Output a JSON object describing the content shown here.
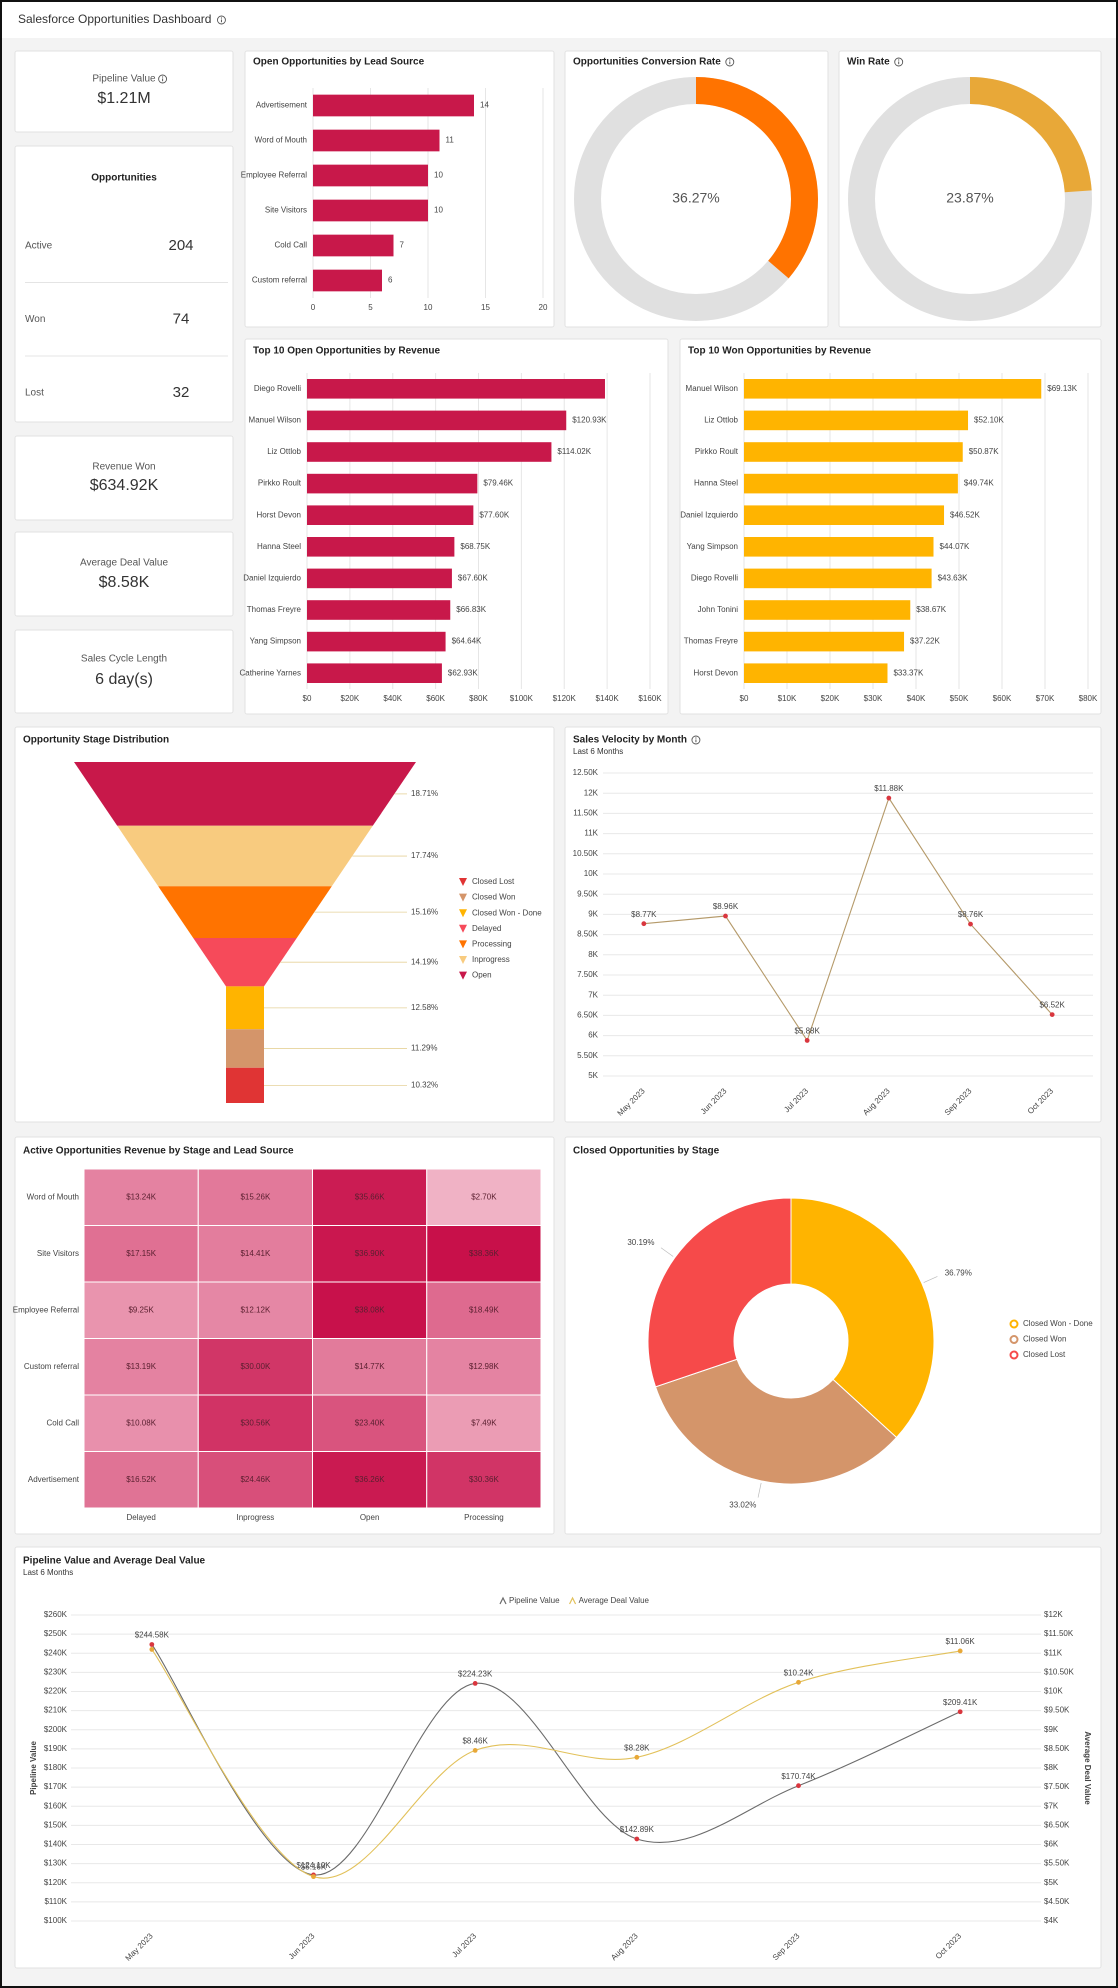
{
  "header": {
    "title": "Salesforce Opportunities Dashboard"
  },
  "kpis": {
    "pipeline": {
      "label": "Pipeline Value",
      "value": "$1.21M"
    },
    "opportunities": {
      "title": "Opportunities",
      "rows": [
        {
          "label": "Active",
          "value": 204
        },
        {
          "label": "Won",
          "value": 74
        },
        {
          "label": "Lost",
          "value": 32
        }
      ]
    },
    "revenue_won": {
      "label": "Revenue Won",
      "value": "$634.92K"
    },
    "avg_deal": {
      "label": "Average Deal Value",
      "value": "$8.58K"
    },
    "cycle": {
      "label": "Sales Cycle Length",
      "value": "6 day(s)"
    }
  },
  "chart_data": [
    {
      "type": "hbar",
      "title": "Open Opportunities by Lead Source",
      "categories": [
        "Advertisement",
        "Word of Mouth",
        "Employee Referral",
        "Site Visitors",
        "Cold Call",
        "Custom referral"
      ],
      "values": [
        14,
        11,
        10,
        10,
        7,
        6
      ],
      "color": "#c8184a",
      "xlim": [
        0,
        20
      ],
      "xticks": [
        0,
        5,
        10,
        15,
        20
      ],
      "grid": true
    },
    {
      "type": "gauge",
      "title": "Opportunities Conversion Rate",
      "values": [
        36.27
      ],
      "value_labels": [
        "36.27%"
      ],
      "color": "#ff7300",
      "track_color": "#e0e0e0"
    },
    {
      "type": "gauge",
      "title": "Win Rate",
      "values": [
        23.87
      ],
      "value_labels": [
        "23.87%"
      ],
      "color": "#e8a838",
      "track_color": "#e0e0e0"
    },
    {
      "type": "hbar",
      "title": "Top 10 Open Opportunities by Revenue",
      "categories": [
        "Diego Rovelli",
        "Manuel Wilson",
        "Liz Ottlob",
        "Pirkko Roult",
        "Horst Devon",
        "Hanna Steel",
        "Daniel Izquierdo",
        "Thomas Freyre",
        "Yang Simpson",
        "Catherine Yarnes"
      ],
      "values": [
        139000,
        120930,
        114020,
        79460,
        77600,
        68750,
        67600,
        66830,
        64640,
        62930
      ],
      "value_labels": [
        null,
        "$120.93K",
        "$114.02K",
        "$79.46K",
        "$77.60K",
        "$68.75K",
        "$67.60K",
        "$66.83K",
        "$64.64K",
        "$62.93K"
      ],
      "color": "#c8184a",
      "xlim": [
        0,
        160000
      ],
      "xticks": [
        {
          "value": 0,
          "label": "$0"
        },
        {
          "value": 20000,
          "label": "$20K"
        },
        {
          "value": 40000,
          "label": "$40K"
        },
        {
          "value": 60000,
          "label": "$60K"
        },
        {
          "value": 80000,
          "label": "$80K"
        },
        {
          "value": 100000,
          "label": "$100K"
        },
        {
          "value": 120000,
          "label": "$120K"
        },
        {
          "value": 140000,
          "label": "$140K"
        },
        {
          "value": 160000,
          "label": "$160K"
        }
      ],
      "grid": true
    },
    {
      "type": "hbar",
      "title": "Top 10 Won Opportunities by Revenue",
      "categories": [
        "Manuel Wilson",
        "Liz Ottlob",
        "Pirkko Roult",
        "Hanna Steel",
        "Daniel Izquierdo",
        "Yang Simpson",
        "Diego Rovelli",
        "John Tonini",
        "Thomas Freyre",
        "Horst Devon"
      ],
      "values": [
        69130,
        52100,
        50870,
        49740,
        46520,
        44070,
        43630,
        38670,
        37220,
        33370
      ],
      "value_labels": [
        "$69.13K",
        "$52.10K",
        "$50.87K",
        "$49.74K",
        "$46.52K",
        "$44.07K",
        "$43.63K",
        "$38.67K",
        "$37.22K",
        "$33.37K"
      ],
      "color": "#ffb400",
      "xlim": [
        0,
        80000
      ],
      "xticks": [
        {
          "value": 0,
          "label": "$0"
        },
        {
          "value": 10000,
          "label": "$10K"
        },
        {
          "value": 20000,
          "label": "$20K"
        },
        {
          "value": 30000,
          "label": "$30K"
        },
        {
          "value": 40000,
          "label": "$40K"
        },
        {
          "value": 50000,
          "label": "$50K"
        },
        {
          "value": 60000,
          "label": "$60K"
        },
        {
          "value": 70000,
          "label": "$70K"
        },
        {
          "value": 80000,
          "label": "$80K"
        }
      ],
      "grid": true
    },
    {
      "type": "funnel",
      "title": "Opportunity Stage Distribution",
      "categories": [
        "Closed Lost",
        "Closed Won",
        "Closed Won - Done",
        "Delayed",
        "Processing",
        "Inprogress",
        "Open"
      ],
      "values": [
        10.32,
        11.29,
        12.58,
        14.19,
        15.16,
        17.74,
        18.71
      ],
      "value_labels": [
        "10.32%",
        "11.29%",
        "12.58%",
        "14.19%",
        "15.16%",
        "17.74%",
        "18.71%"
      ],
      "colors": [
        "#e03434",
        "#d4956a",
        "#ffb400",
        "#f64a5a",
        "#ff7300",
        "#f8cb7f",
        "#c8184a"
      ]
    },
    {
      "type": "line",
      "title": "Sales Velocity by Month",
      "subtitle": "Last 6 Months",
      "categories": [
        "May 2023",
        "Jun 2023",
        "Jul 2023",
        "Aug 2023",
        "Sep 2023",
        "Oct 2023"
      ],
      "values": [
        8770,
        8960,
        5880,
        11880,
        8760,
        6520
      ],
      "value_labels": [
        "$8.77K",
        "$8.96K",
        "$5.88K",
        "$11.88K",
        "$8.76K",
        "$6.52K"
      ],
      "color": "#b59a6a",
      "marker_color": "#d9363e",
      "ylim": [
        5000,
        12500
      ],
      "yticks": [
        {
          "value": 5000,
          "label": "5K"
        },
        {
          "value": 5500,
          "label": "5.50K"
        },
        {
          "value": 6000,
          "label": "6K"
        },
        {
          "value": 6500,
          "label": "6.50K"
        },
        {
          "value": 7000,
          "label": "7K"
        },
        {
          "value": 7500,
          "label": "7.50K"
        },
        {
          "value": 8000,
          "label": "8K"
        },
        {
          "value": 8500,
          "label": "8.50K"
        },
        {
          "value": 9000,
          "label": "9K"
        },
        {
          "value": 9500,
          "label": "9.50K"
        },
        {
          "value": 10000,
          "label": "10K"
        },
        {
          "value": 10500,
          "label": "10.50K"
        },
        {
          "value": 11000,
          "label": "11K"
        },
        {
          "value": 11500,
          "label": "11.50K"
        },
        {
          "value": 12000,
          "label": "12K"
        },
        {
          "value": 12500,
          "label": "12.50K"
        }
      ],
      "grid": true
    },
    {
      "type": "heatmap",
      "title": "Active Opportunities Revenue by Stage and Lead Source",
      "rows": [
        "Word of Mouth",
        "Site Visitors",
        "Employee Referral",
        "Custom referral",
        "Cold Call",
        "Advertisement"
      ],
      "columns": [
        "Delayed",
        "Inprogress",
        "Open",
        "Processing"
      ],
      "values": [
        [
          13240,
          15260,
          35660,
          2700
        ],
        [
          17150,
          14410,
          36900,
          38360
        ],
        [
          9250,
          12120,
          38080,
          18490
        ],
        [
          13190,
          30000,
          14770,
          12980
        ],
        [
          10080,
          30560,
          23400,
          7490
        ],
        [
          16520,
          24460,
          36260,
          30360
        ]
      ],
      "value_labels": [
        [
          "$13.24K",
          "$15.26K",
          "$35.66K",
          "$2.70K"
        ],
        [
          "$17.15K",
          "$14.41K",
          "$36.90K",
          "$38.36K"
        ],
        [
          "$9.25K",
          "$12.12K",
          "$38.08K",
          "$18.49K"
        ],
        [
          "$13.19K",
          "$30.00K",
          "$14.77K",
          "$12.98K"
        ],
        [
          "$10.08K",
          "$30.56K",
          "$23.40K",
          "$7.49K"
        ],
        [
          "$16.52K",
          "$24.46K",
          "$36.26K",
          "$30.36K"
        ]
      ],
      "colors": [
        "#f0b2c5",
        "#c8104a"
      ]
    },
    {
      "type": "donut",
      "title": "Closed Opportunities by Stage",
      "categories": [
        "Closed Won - Done",
        "Closed Won",
        "Closed Lost"
      ],
      "values": [
        36.79,
        33.02,
        30.19
      ],
      "value_labels": [
        "36.79%",
        "33.02%",
        "30.19%"
      ],
      "colors": [
        "#ffb400",
        "#d4956a",
        "#f64a4a"
      ],
      "legend": "right"
    },
    {
      "type": "combo_line",
      "title": "Pipeline Value and Average Deal Value",
      "subtitle": "Last 6 Months",
      "categories": [
        "May 2023",
        "Jun 2023",
        "Jul 2023",
        "Aug 2023",
        "Sep 2023",
        "Oct 2023"
      ],
      "ylabel": "Pipeline Value",
      "y2label": "Average Deal Value",
      "legend": "top",
      "series": [
        {
          "name": "Pipeline Value",
          "color": "#6b6b6b",
          "marker_color": "#d9363e",
          "values": [
            244580,
            124100,
            224230,
            142890,
            170740,
            209410
          ],
          "value_labels": [
            "$244.58K",
            "$124.10K",
            "$224.23K",
            "$142.89K",
            "$170.74K",
            "$209.41K"
          ]
        },
        {
          "name": "Average Deal Value",
          "color": "#e2c15a",
          "marker_color": "#e8a838",
          "axis": "y2",
          "values": [
            11100,
            5160,
            8460,
            8280,
            10240,
            11060
          ],
          "value_labels": [
            null,
            "$5.16K",
            "$8.46K",
            "$8.28K",
            "$10.24K",
            "$11.06K"
          ]
        }
      ],
      "ylim": [
        100000,
        260000
      ],
      "yticks": [
        {
          "value": 100000,
          "label": "$100K"
        },
        {
          "value": 110000,
          "label": "$110K"
        },
        {
          "value": 120000,
          "label": "$120K"
        },
        {
          "value": 130000,
          "label": "$130K"
        },
        {
          "value": 140000,
          "label": "$140K"
        },
        {
          "value": 150000,
          "label": "$150K"
        },
        {
          "value": 160000,
          "label": "$160K"
        },
        {
          "value": 170000,
          "label": "$170K"
        },
        {
          "value": 180000,
          "label": "$180K"
        },
        {
          "value": 190000,
          "label": "$190K"
        },
        {
          "value": 200000,
          "label": "$200K"
        },
        {
          "value": 210000,
          "label": "$210K"
        },
        {
          "value": 220000,
          "label": "$220K"
        },
        {
          "value": 230000,
          "label": "$230K"
        },
        {
          "value": 240000,
          "label": "$240K"
        },
        {
          "value": 250000,
          "label": "$250K"
        },
        {
          "value": 260000,
          "label": "$260K"
        }
      ],
      "y2lim": [
        4000,
        12000
      ],
      "y2ticks": [
        {
          "value": 4000,
          "label": "$4K"
        },
        {
          "value": 4500,
          "label": "$4.50K"
        },
        {
          "value": 5000,
          "label": "$5K"
        },
        {
          "value": 5500,
          "label": "$5.50K"
        },
        {
          "value": 6000,
          "label": "$6K"
        },
        {
          "value": 6500,
          "label": "$6.50K"
        },
        {
          "value": 7000,
          "label": "$7K"
        },
        {
          "value": 7500,
          "label": "$7.50K"
        },
        {
          "value": 8000,
          "label": "$8K"
        },
        {
          "value": 8500,
          "label": "$8.50K"
        },
        {
          "value": 9000,
          "label": "$9K"
        },
        {
          "value": 9500,
          "label": "$9.50K"
        },
        {
          "value": 10000,
          "label": "$10K"
        },
        {
          "value": 10500,
          "label": "$10.50K"
        },
        {
          "value": 11000,
          "label": "$11K"
        },
        {
          "value": 11500,
          "label": "$11.50K"
        },
        {
          "value": 12000,
          "label": "$12K"
        }
      ],
      "grid": true
    }
  ]
}
